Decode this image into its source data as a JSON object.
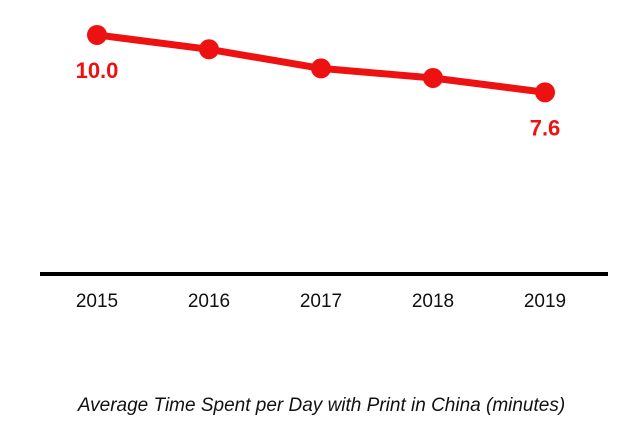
{
  "chart_data": {
    "type": "line",
    "title": "",
    "caption": "Average Time Spent per Day with Print in China (minutes)",
    "xlabel": "",
    "ylabel": "",
    "categories": [
      "2015",
      "2016",
      "2017",
      "2018",
      "2019"
    ],
    "series": [
      {
        "values": [
          10.0,
          9.4,
          8.6,
          8.2,
          7.6
        ]
      }
    ],
    "data_labels": [
      {
        "index": 0,
        "text": "10.0"
      },
      {
        "index": 4,
        "text": "7.6"
      }
    ],
    "ylim": [
      0,
      10.5
    ],
    "grid": false,
    "legend": "none",
    "colors": {
      "series": "#ee1111",
      "axis": "#000000",
      "text": "#111111"
    }
  }
}
